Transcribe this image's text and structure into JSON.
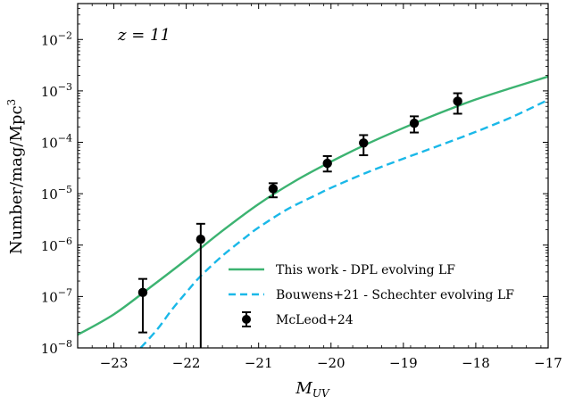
{
  "chart_data": {
    "type": "line",
    "annotation": "z = 11",
    "xlabel": "M_UV",
    "ylabel": "Number/mag/Mpc^3",
    "xlim": [
      -23.5,
      -17
    ],
    "ylim": [
      1e-08,
      0.05
    ],
    "yscale": "log",
    "grid": false,
    "legend_position": "bottom-right",
    "x_ticks": [
      -23,
      -22,
      -21,
      -20,
      -19,
      -18,
      -17
    ],
    "x_tick_labels": [
      "−23",
      "−22",
      "−21",
      "−20",
      "−19",
      "−18",
      "−17"
    ],
    "y_ticks": [
      {
        "base": "10",
        "exp": "−8",
        "value": 1e-08
      },
      {
        "base": "10",
        "exp": "−7",
        "value": 1e-07
      },
      {
        "base": "10",
        "exp": "−6",
        "value": 1e-06
      },
      {
        "base": "10",
        "exp": "−5",
        "value": 1e-05
      },
      {
        "base": "10",
        "exp": "−4",
        "value": 0.0001
      },
      {
        "base": "10",
        "exp": "−3",
        "value": 0.001
      },
      {
        "base": "10",
        "exp": "−2",
        "value": 0.01
      }
    ],
    "series": [
      {
        "name": "This work - DPL evolving LF",
        "style": "solid",
        "color": "#3cb371",
        "x": [
          -23.5,
          -23.0,
          -22.5,
          -22.0,
          -21.5,
          -21.0,
          -20.5,
          -20.0,
          -19.5,
          -19.0,
          -18.5,
          -18.0,
          -17.5,
          -17.0
        ],
        "y": [
          1.8e-08,
          4.5e-08,
          1.5e-07,
          5.2e-07,
          1.9e-06,
          6.3e-06,
          1.75e-05,
          4.2e-05,
          9.3e-05,
          0.00019,
          0.00037,
          0.00068,
          0.00115,
          0.0019
        ]
      },
      {
        "name": "Bouwens+21 - Schechter evolving LF",
        "style": "dashed",
        "color": "#1ab8e8",
        "x": [
          -22.63,
          -22.4,
          -22.2,
          -22.0,
          -21.8,
          -21.5,
          -21.2,
          -21.0,
          -20.6,
          -20.2,
          -20.0,
          -19.5,
          -19.0,
          -18.5,
          -18.0,
          -17.5,
          -17.0
        ],
        "y": [
          1e-08,
          2.3e-08,
          5.5e-08,
          1.2e-07,
          2.5e-07,
          6.2e-07,
          1.35e-06,
          2.2e-06,
          5e-06,
          9.5e-06,
          1.3e-05,
          2.6e-05,
          4.8e-05,
          8.7e-05,
          0.00016,
          0.00031,
          0.00067
        ]
      },
      {
        "name": "McLeod+24",
        "style": "errorbar",
        "color": "#000000",
        "x": [
          -22.6,
          -21.8,
          -20.8,
          -20.05,
          -19.55,
          -18.85,
          -18.25
        ],
        "y": [
          1.2e-07,
          1.3e-06,
          1.25e-05,
          3.9e-05,
          9.7e-05,
          0.000235,
          0.00063
        ],
        "y_low": [
          2e-08,
          1e-08,
          8.5e-06,
          2.7e-05,
          5.6e-05,
          0.000155,
          0.00036
        ],
        "y_high": [
          2.2e-07,
          2.6e-06,
          1.6e-05,
          5.4e-05,
          0.000138,
          0.00032,
          0.0009
        ]
      }
    ]
  }
}
